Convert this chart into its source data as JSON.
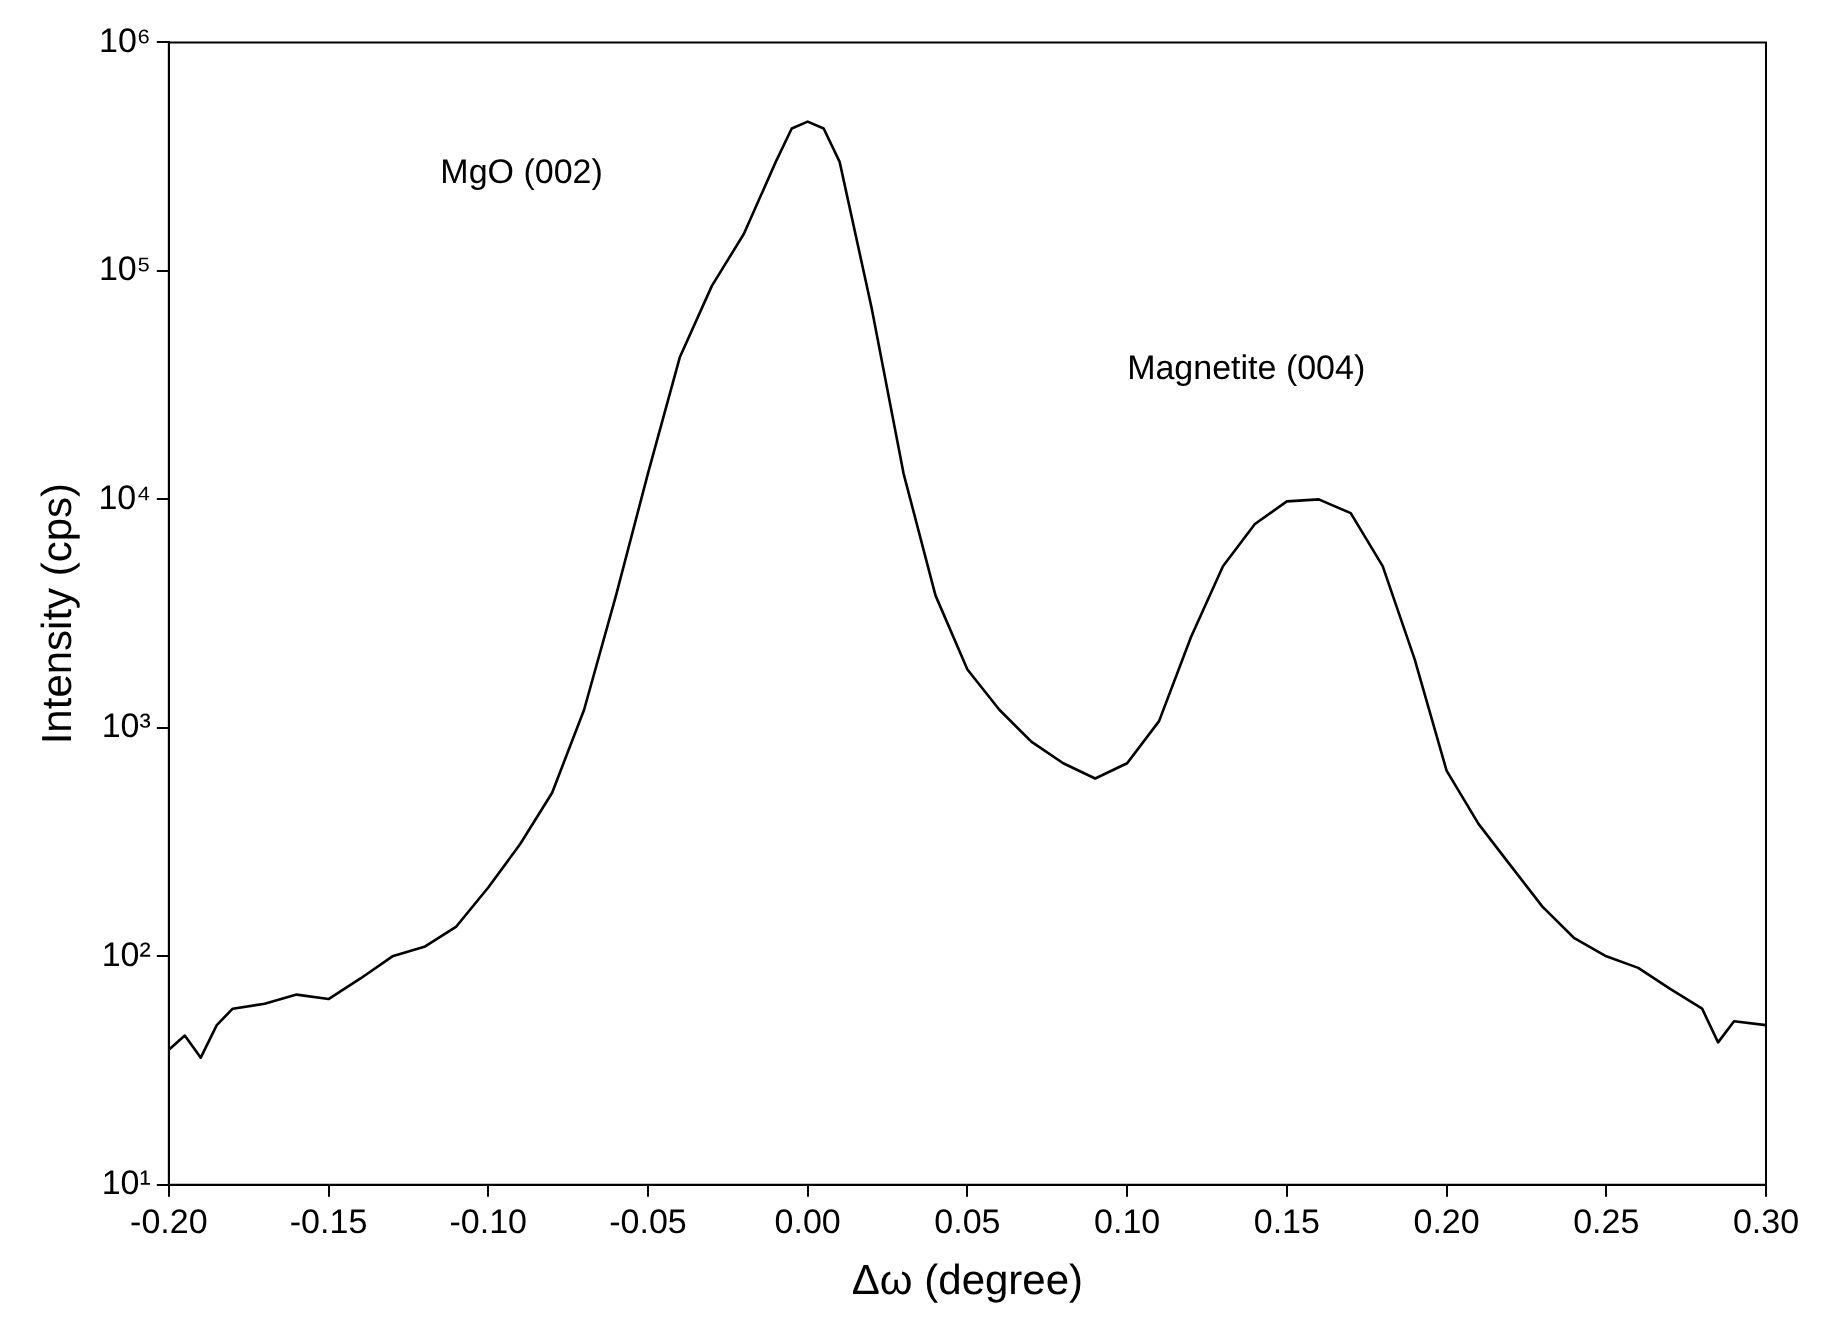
{
  "chart_data": {
    "type": "line",
    "xlabel": "Δω (degree)",
    "ylabel": "Intensity (cps)",
    "log": "y",
    "grid": false,
    "legend": false,
    "marker": "none",
    "line_style": "solid",
    "xlim": [
      -0.2,
      0.3
    ],
    "ylim": [
      10,
      1000000
    ],
    "xticks": [
      {
        "value": -0.2,
        "label": "-0.20"
      },
      {
        "value": -0.15,
        "label": "-0.15"
      },
      {
        "value": -0.1,
        "label": "-0.10"
      },
      {
        "value": -0.05,
        "label": "-0.05"
      },
      {
        "value": 0,
        "label": "0.00"
      },
      {
        "value": 0.05,
        "label": "0.05"
      },
      {
        "value": 0.1,
        "label": "0.10"
      },
      {
        "value": 0.15,
        "label": "0.15"
      },
      {
        "value": 0.2,
        "label": "0.20"
      },
      {
        "value": 0.25,
        "label": "0.25"
      },
      {
        "value": 0.3,
        "label": "0.30"
      }
    ],
    "yticks": [
      {
        "value": 10,
        "label": "10¹"
      },
      {
        "value": 100,
        "label": "10²"
      },
      {
        "value": 1000,
        "label": "10³"
      },
      {
        "value": 10000,
        "label": "10⁴"
      },
      {
        "value": 100000,
        "label": "10⁵"
      },
      {
        "value": 1000000,
        "label": "10⁶"
      }
    ],
    "annotations": [
      "MgO (002)",
      "Magnetite (004)"
    ],
    "series": [
      {
        "color": "#000000",
        "x": [
          -0.2,
          -0.195,
          -0.19,
          -0.185,
          -0.18,
          -0.17,
          -0.16,
          -0.15,
          -0.14,
          -0.13,
          -0.12,
          -0.11,
          -0.1,
          -0.09,
          -0.08,
          -0.07,
          -0.06,
          -0.05,
          -0.04,
          -0.03,
          -0.02,
          -0.01,
          -0.005,
          0,
          0.005,
          0.01,
          0.02,
          0.03,
          0.04,
          0.05,
          0.06,
          0.07,
          0.08,
          0.09,
          0.1,
          0.11,
          0.12,
          0.13,
          0.14,
          0.15,
          0.16,
          0.17,
          0.18,
          0.19,
          0.2,
          0.21,
          0.22,
          0.23,
          0.24,
          0.25,
          0.26,
          0.27,
          0.28,
          0.285,
          0.29,
          0.3
        ],
        "values": [
          39,
          45,
          36,
          50,
          59,
          62,
          68,
          65,
          80,
          100,
          110,
          135,
          200,
          310,
          520,
          1200,
          3800,
          13000,
          42000,
          86000,
          145000,
          300000,
          420000,
          450000,
          420000,
          300000,
          69000,
          13000,
          3800,
          1800,
          1200,
          870,
          700,
          600,
          700,
          1070,
          2500,
          5100,
          7800,
          9800,
          10000,
          8700,
          5100,
          2000,
          650,
          380,
          250,
          165,
          120,
          100,
          89,
          72,
          59,
          42,
          52,
          50
        ]
      }
    ]
  }
}
